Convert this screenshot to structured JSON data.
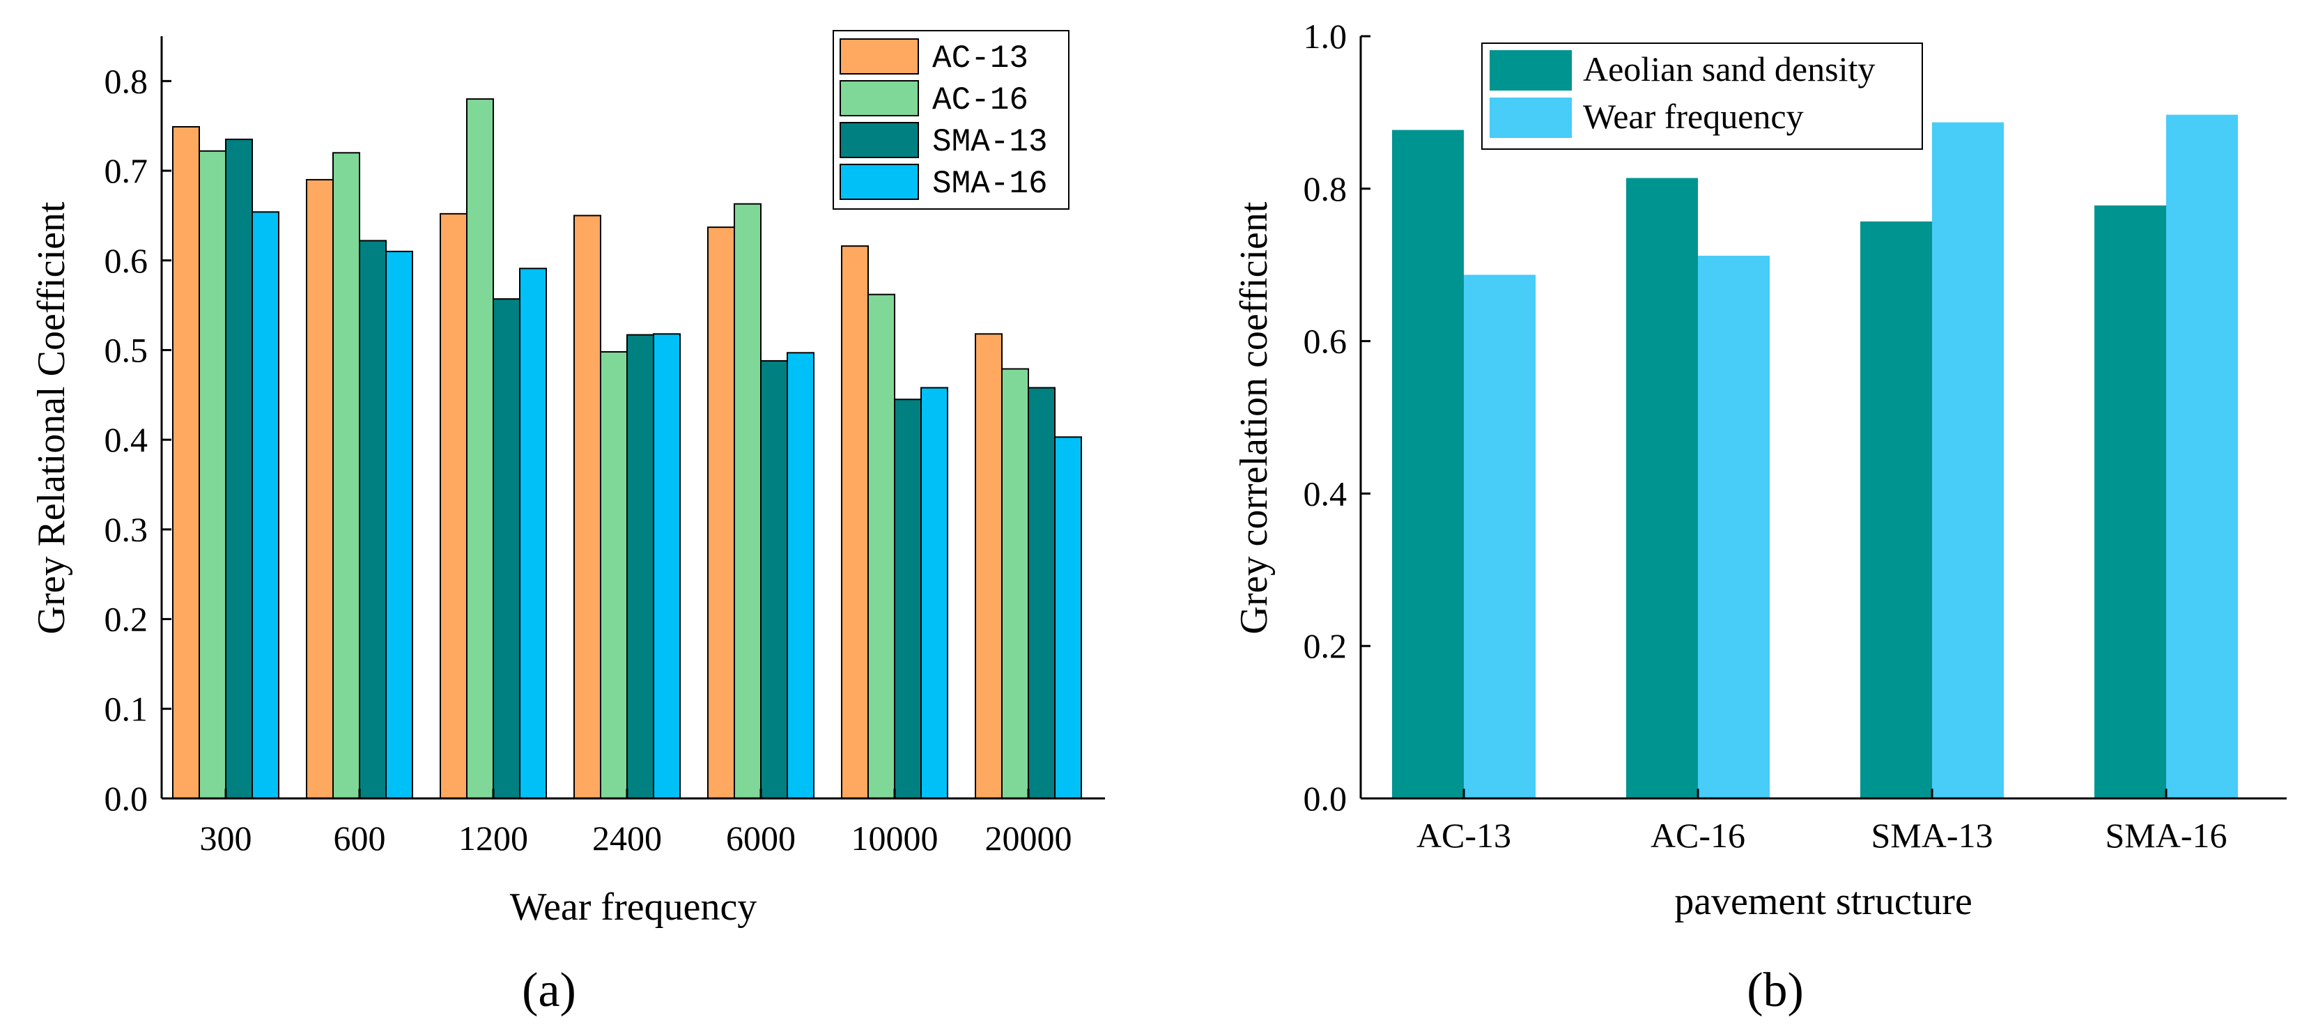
{
  "chart_data": [
    {
      "type": "bar",
      "panel_label": "(a)",
      "title": "",
      "xlabel": "Wear frequency",
      "ylabel": "Grey Relational Coefficient",
      "ylim": [
        0,
        0.85
      ],
      "yticks": [
        "0.0",
        "0.1",
        "0.2",
        "0.3",
        "0.4",
        "0.5",
        "0.6",
        "0.7",
        "0.8"
      ],
      "categories": [
        "300",
        "600",
        "1200",
        "2400",
        "6000",
        "10000",
        "20000"
      ],
      "legend_position": "top-right",
      "series": [
        {
          "name": "AC-13",
          "color": "#ffa860",
          "values": [
            0.749,
            0.69,
            0.652,
            0.65,
            0.637,
            0.616,
            0.518
          ]
        },
        {
          "name": "AC-16",
          "color": "#80d898",
          "values": [
            0.722,
            0.72,
            0.78,
            0.498,
            0.663,
            0.562,
            0.479
          ]
        },
        {
          "name": "SMA-13",
          "color": "#008080",
          "values": [
            0.735,
            0.622,
            0.557,
            0.517,
            0.488,
            0.445,
            0.458
          ]
        },
        {
          "name": "SMA-16",
          "color": "#00c0f8",
          "values": [
            0.654,
            0.61,
            0.591,
            0.518,
            0.497,
            0.458,
            0.403
          ]
        }
      ]
    },
    {
      "type": "bar",
      "panel_label": "(b)",
      "title": "",
      "xlabel": "pavement structure",
      "ylabel": "Grey correlation coefficient",
      "ylim": [
        0,
        1.0
      ],
      "yticks": [
        "0.0",
        "0.2",
        "0.4",
        "0.6",
        "0.8",
        "1.0"
      ],
      "categories": [
        "AC-13",
        "AC-16",
        "SMA-13",
        "SMA-16"
      ],
      "legend_position": "top-left",
      "series": [
        {
          "name": "Aeolian sand density",
          "color": "#009490",
          "values": [
            0.877,
            0.814,
            0.757,
            0.778
          ]
        },
        {
          "name": "Wear frequency",
          "color": "#48ccf8",
          "values": [
            0.687,
            0.712,
            0.887,
            0.897
          ]
        }
      ]
    }
  ]
}
